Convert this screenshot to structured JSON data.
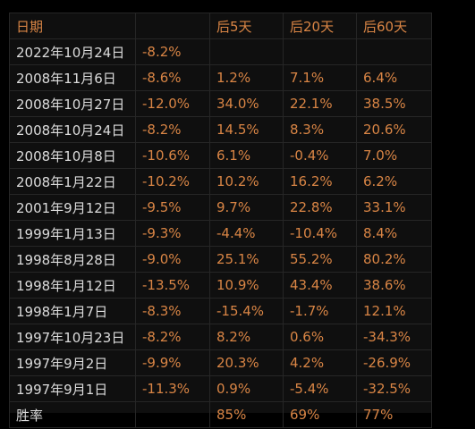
{
  "table": {
    "headers": [
      "日期",
      "",
      "后5天",
      "后20天",
      "后60天"
    ],
    "rows": [
      {
        "date": "2022年10月24日",
        "drop": "-8.2%",
        "d5": "",
        "d20": "",
        "d60": ""
      },
      {
        "date": "2008年11月6日",
        "drop": "-8.6%",
        "d5": "1.2%",
        "d20": "7.1%",
        "d60": "6.4%"
      },
      {
        "date": "2008年10月27日",
        "drop": "-12.0%",
        "d5": "34.0%",
        "d20": "22.1%",
        "d60": "38.5%"
      },
      {
        "date": "2008年10月24日",
        "drop": "-8.2%",
        "d5": "14.5%",
        "d20": "8.3%",
        "d60": "20.6%"
      },
      {
        "date": "2008年10月8日",
        "drop": "-10.6%",
        "d5": "6.1%",
        "d20": "-0.4%",
        "d60": "7.0%"
      },
      {
        "date": "2008年1月22日",
        "drop": "-10.2%",
        "d5": "10.2%",
        "d20": "16.2%",
        "d60": "6.2%"
      },
      {
        "date": "2001年9月12日",
        "drop": "-9.5%",
        "d5": "9.7%",
        "d20": "22.8%",
        "d60": "33.1%"
      },
      {
        "date": "1999年1月13日",
        "drop": "-9.3%",
        "d5": "-4.4%",
        "d20": "-10.4%",
        "d60": "8.4%"
      },
      {
        "date": "1998年8月28日",
        "drop": "-9.0%",
        "d5": "25.1%",
        "d20": "55.2%",
        "d60": "80.2%"
      },
      {
        "date": "1998年1月12日",
        "drop": "-13.5%",
        "d5": "10.9%",
        "d20": "43.4%",
        "d60": "38.6%"
      },
      {
        "date": "1998年1月7日",
        "drop": "-8.3%",
        "d5": "-15.4%",
        "d20": "-1.7%",
        "d60": "12.1%"
      },
      {
        "date": "1997年10月23日",
        "drop": "-8.2%",
        "d5": "8.2%",
        "d20": "0.6%",
        "d60": "-34.3%"
      },
      {
        "date": "1997年9月2日",
        "drop": "-9.9%",
        "d5": "20.3%",
        "d20": "4.2%",
        "d60": "-26.9%"
      },
      {
        "date": "1997年9月1日",
        "drop": "-11.3%",
        "d5": "0.9%",
        "d20": "-5.4%",
        "d60": "-32.5%"
      }
    ],
    "summary": {
      "label": "胜率",
      "drop": "",
      "d5": "85%",
      "d20": "69%",
      "d60": "77%"
    }
  },
  "colors": {
    "background": "#000000",
    "panel": "#0f0f0f",
    "gridline": "#262626",
    "date_text": "#dcdcdc",
    "value_text": "#d98545"
  }
}
